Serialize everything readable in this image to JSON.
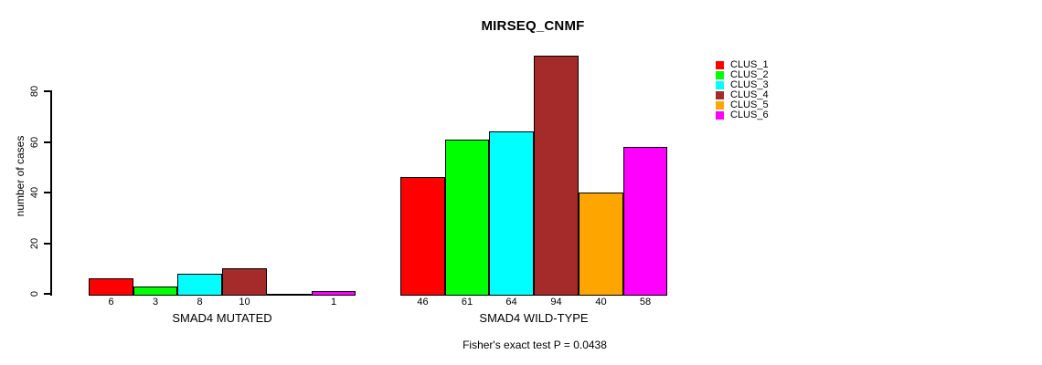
{
  "chart_data": {
    "type": "bar",
    "title": "MIRSEQ_CNMF",
    "ylabel": "number of cases",
    "ylim": [
      0,
      80
    ],
    "yticks": [
      0,
      20,
      40,
      60,
      80
    ],
    "grid": false,
    "legend_position": "right",
    "annotation": "Fisher's exact test P = 0.0438",
    "clusters": [
      {
        "name": "CLUS_1",
        "color": "#FF0000"
      },
      {
        "name": "CLUS_2",
        "color": "#00FF00"
      },
      {
        "name": "CLUS_3",
        "color": "#00FFFF"
      },
      {
        "name": "CLUS_4",
        "color": "#A52A2A"
      },
      {
        "name": "CLUS_5",
        "color": "#FFA500"
      },
      {
        "name": "CLUS_6",
        "color": "#FF00FF"
      }
    ],
    "groups": [
      {
        "label": "SMAD4 MUTATED",
        "values": [
          6,
          3,
          8,
          10,
          0,
          1
        ],
        "bar_labels": [
          "6",
          "3",
          "8",
          "10",
          "",
          "1"
        ]
      },
      {
        "label": "SMAD4 WILD-TYPE",
        "values": [
          46,
          61,
          64,
          94,
          40,
          58
        ],
        "bar_labels": [
          "46",
          "61",
          "64",
          "94",
          "40",
          "58"
        ]
      }
    ]
  }
}
